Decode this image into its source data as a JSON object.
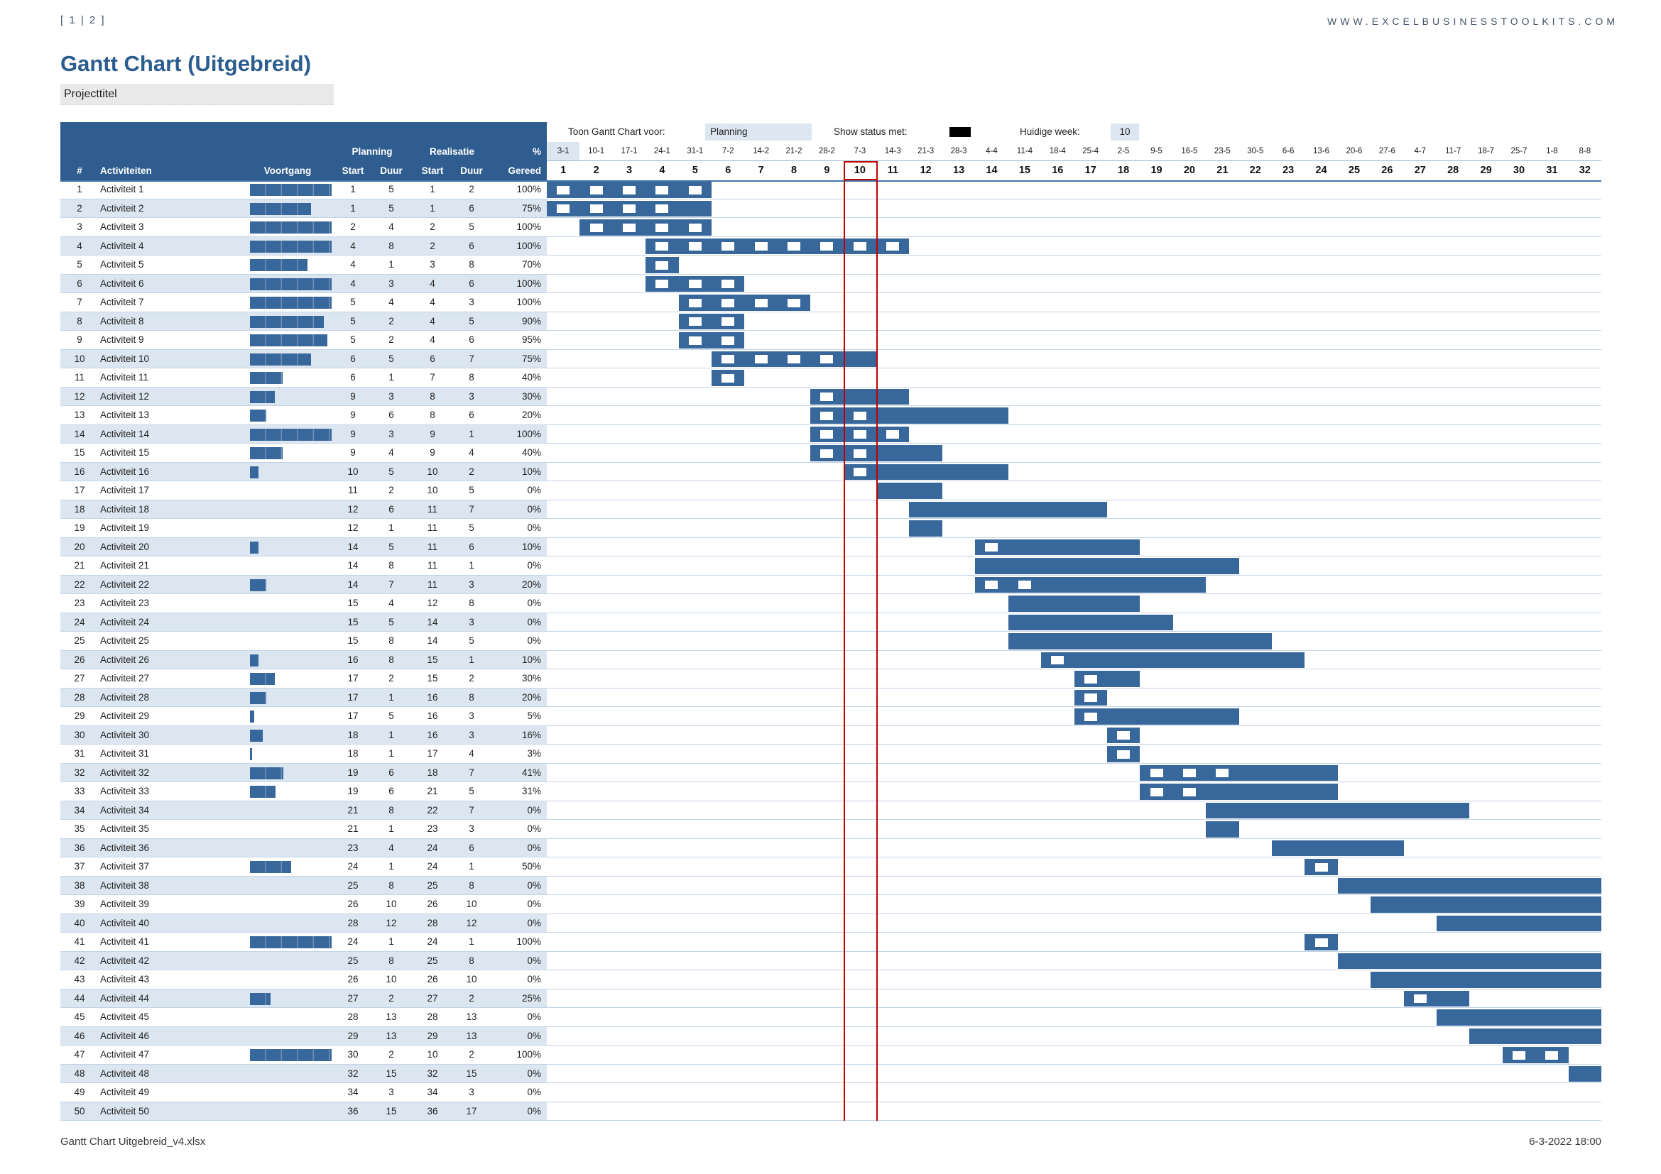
{
  "page": {
    "sheet_nav": "[ 1 | 2 ]",
    "website": "WWW.EXCELBUSINESSTOOLKITS.COM",
    "title": "Gantt Chart (Uitgebreid)",
    "project_title": "Projecttitel",
    "footer_left": "Gantt Chart Uitgebreid_v4.xlsx",
    "footer_right": "6-3-2022 18:00"
  },
  "controls": {
    "show_chart_label": "Toon Gantt Chart voor:",
    "show_chart_value": "Planning",
    "status_label": "Show status met:",
    "current_week_label": "Huidige week:",
    "current_week_value": "10"
  },
  "table_header": {
    "col_num": "#",
    "col_activities": "Activiteiten",
    "col_progress": "Voortgang",
    "group_planning": "Planning",
    "group_realisation": "Realisatie",
    "col_pct": "%",
    "col_start_p": "Start",
    "col_duur_p": "Duur",
    "col_start_r": "Start",
    "col_duur_r": "Duur",
    "col_gereed": "Gereed"
  },
  "colors": {
    "header_blue": "#2F5D90",
    "bar_blue": "#38679B",
    "stripe_blue": "#DCE6F1",
    "current_week_red": "#C00000",
    "grid_blue": "#9FB9D9",
    "status_marker": "#FFFFFF",
    "legend_marker": "#000000"
  },
  "chart_data": {
    "type": "table",
    "subtype": "gantt",
    "title": "Gantt Chart (Uitgebreid)",
    "view_mode": "Planning",
    "current_week": 10,
    "weeks_shown": 32,
    "week_dates": [
      "3-1",
      "10-1",
      "17-1",
      "24-1",
      "31-1",
      "7-2",
      "14-2",
      "21-2",
      "28-2",
      "7-3",
      "14-3",
      "21-3",
      "28-3",
      "4-4",
      "11-4",
      "18-4",
      "25-4",
      "2-5",
      "9-5",
      "16-5",
      "23-5",
      "30-5",
      "6-6",
      "13-6",
      "20-6",
      "27-6",
      "4-7",
      "11-7",
      "18-7",
      "25-7",
      "1-8",
      "8-8"
    ],
    "week_numbers": [
      1,
      2,
      3,
      4,
      5,
      6,
      7,
      8,
      9,
      10,
      11,
      12,
      13,
      14,
      15,
      16,
      17,
      18,
      19,
      20,
      21,
      22,
      23,
      24,
      25,
      26,
      27,
      28,
      29,
      30,
      31,
      32
    ],
    "rows": [
      {
        "n": 1,
        "name": "Activiteit 1",
        "ps": 1,
        "pd": 5,
        "rs": 1,
        "rd": 2,
        "pct": 100
      },
      {
        "n": 2,
        "name": "Activiteit 2",
        "ps": 1,
        "pd": 5,
        "rs": 1,
        "rd": 6,
        "pct": 75
      },
      {
        "n": 3,
        "name": "Activiteit 3",
        "ps": 2,
        "pd": 4,
        "rs": 2,
        "rd": 5,
        "pct": 100
      },
      {
        "n": 4,
        "name": "Activiteit 4",
        "ps": 4,
        "pd": 8,
        "rs": 2,
        "rd": 6,
        "pct": 100
      },
      {
        "n": 5,
        "name": "Activiteit 5",
        "ps": 4,
        "pd": 1,
        "rs": 3,
        "rd": 8,
        "pct": 70
      },
      {
        "n": 6,
        "name": "Activiteit 6",
        "ps": 4,
        "pd": 3,
        "rs": 4,
        "rd": 6,
        "pct": 100
      },
      {
        "n": 7,
        "name": "Activiteit 7",
        "ps": 5,
        "pd": 4,
        "rs": 4,
        "rd": 3,
        "pct": 100
      },
      {
        "n": 8,
        "name": "Activiteit 8",
        "ps": 5,
        "pd": 2,
        "rs": 4,
        "rd": 5,
        "pct": 90
      },
      {
        "n": 9,
        "name": "Activiteit 9",
        "ps": 5,
        "pd": 2,
        "rs": 4,
        "rd": 6,
        "pct": 95
      },
      {
        "n": 10,
        "name": "Activiteit 10",
        "ps": 6,
        "pd": 5,
        "rs": 6,
        "rd": 7,
        "pct": 75
      },
      {
        "n": 11,
        "name": "Activiteit 11",
        "ps": 6,
        "pd": 1,
        "rs": 7,
        "rd": 8,
        "pct": 40
      },
      {
        "n": 12,
        "name": "Activiteit 12",
        "ps": 9,
        "pd": 3,
        "rs": 8,
        "rd": 3,
        "pct": 30
      },
      {
        "n": 13,
        "name": "Activiteit 13",
        "ps": 9,
        "pd": 6,
        "rs": 8,
        "rd": 6,
        "pct": 20
      },
      {
        "n": 14,
        "name": "Activiteit 14",
        "ps": 9,
        "pd": 3,
        "rs": 9,
        "rd": 1,
        "pct": 100
      },
      {
        "n": 15,
        "name": "Activiteit 15",
        "ps": 9,
        "pd": 4,
        "rs": 9,
        "rd": 4,
        "pct": 40
      },
      {
        "n": 16,
        "name": "Activiteit 16",
        "ps": 10,
        "pd": 5,
        "rs": 10,
        "rd": 2,
        "pct": 10
      },
      {
        "n": 17,
        "name": "Activiteit 17",
        "ps": 11,
        "pd": 2,
        "rs": 10,
        "rd": 5,
        "pct": 0
      },
      {
        "n": 18,
        "name": "Activiteit 18",
        "ps": 12,
        "pd": 6,
        "rs": 11,
        "rd": 7,
        "pct": 0
      },
      {
        "n": 19,
        "name": "Activiteit 19",
        "ps": 12,
        "pd": 1,
        "rs": 11,
        "rd": 5,
        "pct": 0
      },
      {
        "n": 20,
        "name": "Activiteit 20",
        "ps": 14,
        "pd": 5,
        "rs": 11,
        "rd": 6,
        "pct": 10
      },
      {
        "n": 21,
        "name": "Activiteit 21",
        "ps": 14,
        "pd": 8,
        "rs": 11,
        "rd": 1,
        "pct": 0
      },
      {
        "n": 22,
        "name": "Activiteit 22",
        "ps": 14,
        "pd": 7,
        "rs": 11,
        "rd": 3,
        "pct": 20
      },
      {
        "n": 23,
        "name": "Activiteit 23",
        "ps": 15,
        "pd": 4,
        "rs": 12,
        "rd": 8,
        "pct": 0
      },
      {
        "n": 24,
        "name": "Activiteit 24",
        "ps": 15,
        "pd": 5,
        "rs": 14,
        "rd": 3,
        "pct": 0
      },
      {
        "n": 25,
        "name": "Activiteit 25",
        "ps": 15,
        "pd": 8,
        "rs": 14,
        "rd": 5,
        "pct": 0
      },
      {
        "n": 26,
        "name": "Activiteit 26",
        "ps": 16,
        "pd": 8,
        "rs": 15,
        "rd": 1,
        "pct": 10
      },
      {
        "n": 27,
        "name": "Activiteit 27",
        "ps": 17,
        "pd": 2,
        "rs": 15,
        "rd": 2,
        "pct": 30
      },
      {
        "n": 28,
        "name": "Activiteit 28",
        "ps": 17,
        "pd": 1,
        "rs": 16,
        "rd": 8,
        "pct": 20
      },
      {
        "n": 29,
        "name": "Activiteit 29",
        "ps": 17,
        "pd": 5,
        "rs": 16,
        "rd": 3,
        "pct": 5
      },
      {
        "n": 30,
        "name": "Activiteit 30",
        "ps": 18,
        "pd": 1,
        "rs": 16,
        "rd": 3,
        "pct": 16
      },
      {
        "n": 31,
        "name": "Activiteit 31",
        "ps": 18,
        "pd": 1,
        "rs": 17,
        "rd": 4,
        "pct": 3
      },
      {
        "n": 32,
        "name": "Activiteit 32",
        "ps": 19,
        "pd": 6,
        "rs": 18,
        "rd": 7,
        "pct": 41
      },
      {
        "n": 33,
        "name": "Activiteit 33",
        "ps": 19,
        "pd": 6,
        "rs": 21,
        "rd": 5,
        "pct": 31
      },
      {
        "n": 34,
        "name": "Activiteit 34",
        "ps": 21,
        "pd": 8,
        "rs": 22,
        "rd": 7,
        "pct": 0
      },
      {
        "n": 35,
        "name": "Activiteit 35",
        "ps": 21,
        "pd": 1,
        "rs": 23,
        "rd": 3,
        "pct": 0
      },
      {
        "n": 36,
        "name": "Activiteit 36",
        "ps": 23,
        "pd": 4,
        "rs": 24,
        "rd": 6,
        "pct": 0
      },
      {
        "n": 37,
        "name": "Activiteit 37",
        "ps": 24,
        "pd": 1,
        "rs": 24,
        "rd": 1,
        "pct": 50
      },
      {
        "n": 38,
        "name": "Activiteit 38",
        "ps": 25,
        "pd": 8,
        "rs": 25,
        "rd": 8,
        "pct": 0
      },
      {
        "n": 39,
        "name": "Activiteit 39",
        "ps": 26,
        "pd": 10,
        "rs": 26,
        "rd": 10,
        "pct": 0
      },
      {
        "n": 40,
        "name": "Activiteit 40",
        "ps": 28,
        "pd": 12,
        "rs": 28,
        "rd": 12,
        "pct": 0
      },
      {
        "n": 41,
        "name": "Activiteit 41",
        "ps": 24,
        "pd": 1,
        "rs": 24,
        "rd": 1,
        "pct": 100
      },
      {
        "n": 42,
        "name": "Activiteit 42",
        "ps": 25,
        "pd": 8,
        "rs": 25,
        "rd": 8,
        "pct": 0
      },
      {
        "n": 43,
        "name": "Activiteit 43",
        "ps": 26,
        "pd": 10,
        "rs": 26,
        "rd": 10,
        "pct": 0
      },
      {
        "n": 44,
        "name": "Activiteit 44",
        "ps": 27,
        "pd": 2,
        "rs": 27,
        "rd": 2,
        "pct": 25
      },
      {
        "n": 45,
        "name": "Activiteit 45",
        "ps": 28,
        "pd": 13,
        "rs": 28,
        "rd": 13,
        "pct": 0
      },
      {
        "n": 46,
        "name": "Activiteit 46",
        "ps": 29,
        "pd": 13,
        "rs": 29,
        "rd": 13,
        "pct": 0
      },
      {
        "n": 47,
        "name": "Activiteit 47",
        "ps": 30,
        "pd": 2,
        "rs": 10,
        "rd": 2,
        "pct": 100
      },
      {
        "n": 48,
        "name": "Activiteit 48",
        "ps": 32,
        "pd": 15,
        "rs": 32,
        "rd": 15,
        "pct": 0
      },
      {
        "n": 49,
        "name": "Activiteit 49",
        "ps": 34,
        "pd": 3,
        "rs": 34,
        "rd": 3,
        "pct": 0
      },
      {
        "n": 50,
        "name": "Activiteit 50",
        "ps": 36,
        "pd": 15,
        "rs": 36,
        "rd": 17,
        "pct": 0
      }
    ]
  }
}
